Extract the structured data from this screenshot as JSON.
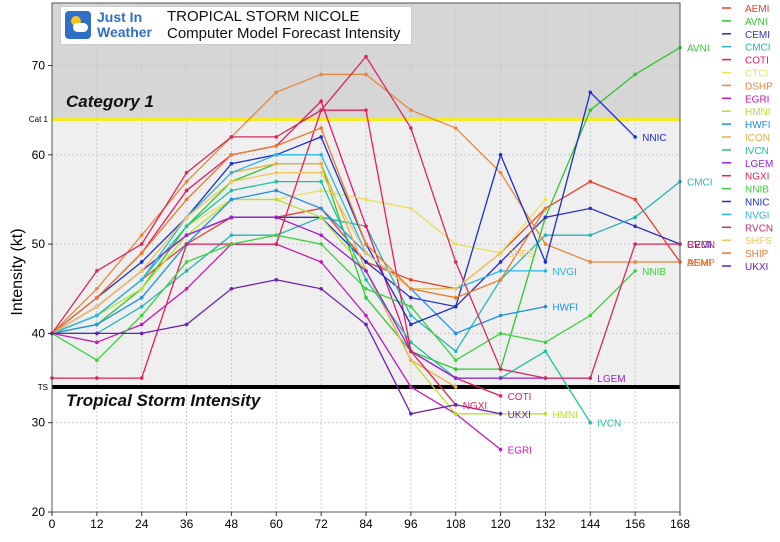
{
  "header": {
    "logo_line1": "Just In",
    "logo_line2": "Weather",
    "title_line1": "TROPICAL STORM NICOLE",
    "title_line2": "Computer Model Forecast Intensity"
  },
  "chart_data": {
    "type": "line",
    "title": "TROPICAL STORM NICOLE Computer Model Forecast Intensity",
    "xlabel": "",
    "ylabel": "Intensity (kt)",
    "xlim": [
      0,
      168
    ],
    "ylim": [
      20,
      77
    ],
    "xticks": [
      0,
      12,
      24,
      36,
      48,
      60,
      72,
      84,
      96,
      108,
      120,
      132,
      144,
      156,
      168
    ],
    "yticks": [
      20,
      30,
      40,
      50,
      60,
      70
    ],
    "grid": true,
    "legend_position": "right",
    "bands": [
      {
        "label": "Category 1",
        "from": 64,
        "to": 77,
        "color": "#d6d6d6"
      },
      {
        "label": "",
        "from": 34,
        "to": 64,
        "color": "#efefef"
      }
    ],
    "thresholds": [
      {
        "label": "Cat 1",
        "value": 64,
        "color": "#f2ea2a",
        "band_label": "Category 1"
      },
      {
        "label": "TS",
        "value": 34,
        "color": "#000000",
        "band_label": "Tropical Storm Intensity"
      }
    ],
    "series": [
      {
        "name": "AEMI",
        "color": "#e8412a",
        "end_label": "AEMI",
        "points": [
          [
            0,
            40
          ],
          [
            12,
            42
          ],
          [
            24,
            46
          ],
          [
            36,
            50
          ],
          [
            48,
            53
          ],
          [
            60,
            53
          ],
          [
            72,
            54
          ],
          [
            84,
            48
          ],
          [
            96,
            46
          ],
          [
            108,
            45
          ],
          [
            120,
            49
          ],
          [
            132,
            54
          ],
          [
            144,
            57
          ],
          [
            156,
            55
          ],
          [
            168,
            48
          ]
        ]
      },
      {
        "name": "AVNI",
        "color": "#2ec82e",
        "end_label": "AVNI",
        "points": [
          [
            0,
            40
          ],
          [
            12,
            41
          ],
          [
            24,
            45
          ],
          [
            36,
            52
          ],
          [
            48,
            57
          ],
          [
            60,
            59
          ],
          [
            72,
            59
          ],
          [
            84,
            44
          ],
          [
            96,
            38
          ],
          [
            108,
            36
          ],
          [
            120,
            36
          ],
          [
            132,
            53
          ],
          [
            144,
            65
          ],
          [
            156,
            69
          ],
          [
            168,
            72
          ]
        ]
      },
      {
        "name": "CEMI",
        "color": "#2f2fbe",
        "end_label": "CEMI",
        "points": [
          [
            0,
            40
          ],
          [
            12,
            43
          ],
          [
            24,
            47
          ],
          [
            36,
            51
          ],
          [
            48,
            53
          ],
          [
            60,
            53
          ],
          [
            72,
            53
          ],
          [
            84,
            48
          ],
          [
            96,
            44
          ],
          [
            108,
            43
          ],
          [
            120,
            48
          ],
          [
            132,
            53
          ],
          [
            144,
            54
          ],
          [
            156,
            52
          ],
          [
            168,
            50
          ]
        ]
      },
      {
        "name": "CMCI",
        "color": "#26b5b5",
        "end_label": "CMCI",
        "points": [
          [
            0,
            40
          ],
          [
            12,
            40
          ],
          [
            24,
            43
          ],
          [
            36,
            47
          ],
          [
            48,
            51
          ],
          [
            60,
            51
          ],
          [
            72,
            53
          ],
          [
            84,
            52
          ],
          [
            96,
            42
          ],
          [
            108,
            38
          ],
          [
            120,
            46
          ],
          [
            132,
            51
          ],
          [
            144,
            51
          ],
          [
            156,
            53
          ],
          [
            168,
            57
          ]
        ]
      },
      {
        "name": "COTI",
        "color": "#e5166a",
        "end_label": "COTI",
        "points": [
          [
            0,
            40
          ],
          [
            12,
            44
          ],
          [
            24,
            49
          ],
          [
            36,
            56
          ],
          [
            48,
            60
          ],
          [
            60,
            61
          ],
          [
            72,
            66
          ],
          [
            84,
            52
          ],
          [
            96,
            38
          ],
          [
            108,
            35
          ],
          [
            120,
            33
          ]
        ]
      },
      {
        "name": "CTCI",
        "color": "#e6e05a",
        "end_label": "",
        "points": [
          [
            0,
            40
          ],
          [
            12,
            42
          ],
          [
            24,
            46
          ],
          [
            36,
            52
          ],
          [
            48,
            55
          ],
          [
            60,
            55
          ],
          [
            72,
            56
          ],
          [
            84,
            55
          ],
          [
            96,
            54
          ],
          [
            108,
            50
          ],
          [
            120,
            49
          ],
          [
            132,
            55
          ]
        ]
      },
      {
        "name": "DSHP",
        "color": "#e8873a",
        "end_label": "DSHP",
        "points": [
          [
            0,
            40
          ],
          [
            12,
            45
          ],
          [
            24,
            51
          ],
          [
            36,
            57
          ],
          [
            48,
            62
          ],
          [
            60,
            67
          ],
          [
            72,
            69
          ],
          [
            84,
            69
          ],
          [
            96,
            65
          ],
          [
            108,
            63
          ],
          [
            120,
            58
          ],
          [
            132,
            50
          ],
          [
            144,
            48
          ],
          [
            156,
            48
          ],
          [
            168,
            48
          ]
        ]
      },
      {
        "name": "EGRI",
        "color": "#c21bb5",
        "end_label": "EGRI",
        "points": [
          [
            0,
            40
          ],
          [
            12,
            39
          ],
          [
            24,
            41
          ],
          [
            36,
            45
          ],
          [
            48,
            50
          ],
          [
            60,
            50
          ],
          [
            72,
            48
          ],
          [
            84,
            42
          ],
          [
            96,
            34
          ],
          [
            108,
            31
          ],
          [
            120,
            27
          ]
        ]
      },
      {
        "name": "HMNI",
        "color": "#b6e034",
        "end_label": "HMNI",
        "points": [
          [
            0,
            40
          ],
          [
            12,
            42
          ],
          [
            24,
            45
          ],
          [
            36,
            51
          ],
          [
            48,
            55
          ],
          [
            60,
            55
          ],
          [
            72,
            53
          ],
          [
            84,
            47
          ],
          [
            96,
            37
          ],
          [
            108,
            31
          ],
          [
            120,
            31
          ],
          [
            132,
            31
          ]
        ]
      },
      {
        "name": "HWFI",
        "color": "#1e90e6",
        "end_label": "HWFI",
        "points": [
          [
            0,
            40
          ],
          [
            12,
            41
          ],
          [
            24,
            44
          ],
          [
            36,
            50
          ],
          [
            48,
            55
          ],
          [
            60,
            56
          ],
          [
            72,
            54
          ],
          [
            84,
            49
          ],
          [
            96,
            45
          ],
          [
            108,
            40
          ],
          [
            120,
            42
          ],
          [
            132,
            43
          ]
        ]
      },
      {
        "name": "ICON",
        "color": "#ecad46",
        "end_label": "",
        "points": [
          [
            0,
            40
          ],
          [
            12,
            43
          ],
          [
            24,
            47
          ],
          [
            36,
            53
          ],
          [
            48,
            58
          ],
          [
            60,
            59
          ],
          [
            72,
            59
          ],
          [
            84,
            47
          ],
          [
            96,
            37
          ],
          [
            108,
            34
          ]
        ]
      },
      {
        "name": "IVCN",
        "color": "#1ec2a0",
        "end_label": "IVCN",
        "points": [
          [
            0,
            40
          ],
          [
            12,
            42
          ],
          [
            24,
            46
          ],
          [
            36,
            52
          ],
          [
            48,
            56
          ],
          [
            60,
            57
          ],
          [
            72,
            57
          ],
          [
            84,
            46
          ],
          [
            96,
            39
          ],
          [
            108,
            35
          ],
          [
            120,
            35
          ],
          [
            132,
            38
          ],
          [
            144,
            30
          ]
        ]
      },
      {
        "name": "LGEM",
        "color": "#9b1fd6",
        "end_label": "LGEM",
        "points": [
          [
            0,
            40
          ],
          [
            12,
            43
          ],
          [
            24,
            47
          ],
          [
            36,
            51
          ],
          [
            48,
            53
          ],
          [
            60,
            53
          ],
          [
            72,
            51
          ],
          [
            84,
            47
          ],
          [
            96,
            38
          ],
          [
            108,
            35
          ],
          [
            120,
            35
          ],
          [
            132,
            35
          ],
          [
            144,
            35
          ]
        ]
      },
      {
        "name": "NGXI",
        "color": "#e71f57",
        "end_label": "NGXI",
        "points": [
          [
            0,
            35
          ],
          [
            12,
            35
          ],
          [
            24,
            35
          ],
          [
            36,
            50
          ],
          [
            48,
            50
          ],
          [
            60,
            50
          ],
          [
            72,
            65
          ],
          [
            84,
            65
          ],
          [
            96,
            38
          ],
          [
            108,
            32
          ]
        ]
      },
      {
        "name": "NNIB",
        "color": "#3dd13d",
        "end_label": "NNIB",
        "points": [
          [
            0,
            40
          ],
          [
            12,
            37
          ],
          [
            24,
            42
          ],
          [
            36,
            48
          ],
          [
            48,
            50
          ],
          [
            60,
            51
          ],
          [
            72,
            50
          ],
          [
            84,
            45
          ],
          [
            96,
            43
          ],
          [
            108,
            37
          ],
          [
            120,
            40
          ],
          [
            132,
            39
          ],
          [
            144,
            42
          ],
          [
            156,
            47
          ]
        ]
      },
      {
        "name": "NNIC",
        "color": "#1b2fcf",
        "end_label": "NNIC",
        "points": [
          [
            0,
            40
          ],
          [
            12,
            44
          ],
          [
            24,
            48
          ],
          [
            36,
            53
          ],
          [
            48,
            59
          ],
          [
            60,
            60
          ],
          [
            72,
            62
          ],
          [
            84,
            50
          ],
          [
            96,
            41
          ],
          [
            108,
            43
          ],
          [
            120,
            60
          ],
          [
            132,
            48
          ],
          [
            144,
            67
          ],
          [
            156,
            62
          ]
        ]
      },
      {
        "name": "NVGI",
        "color": "#25b8e6",
        "end_label": "NVGI",
        "points": [
          [
            0,
            40
          ],
          [
            12,
            42
          ],
          [
            24,
            46
          ],
          [
            36,
            53
          ],
          [
            48,
            58
          ],
          [
            60,
            60
          ],
          [
            72,
            60
          ],
          [
            84,
            49
          ],
          [
            96,
            45
          ],
          [
            108,
            45
          ],
          [
            120,
            47
          ],
          [
            132,
            47
          ]
        ]
      },
      {
        "name": "RVCN",
        "color": "#d22b60",
        "end_label": "RVCN",
        "points": [
          [
            0,
            40
          ],
          [
            12,
            47
          ],
          [
            24,
            50
          ],
          [
            36,
            58
          ],
          [
            48,
            62
          ],
          [
            60,
            62
          ],
          [
            72,
            65
          ],
          [
            84,
            71
          ],
          [
            96,
            63
          ],
          [
            108,
            48
          ],
          [
            120,
            36
          ],
          [
            132,
            35
          ],
          [
            144,
            35
          ],
          [
            156,
            50
          ],
          [
            168,
            50
          ]
        ]
      },
      {
        "name": "SHFS",
        "color": "#f1c65e",
        "end_label": "SHFS",
        "points": [
          [
            0,
            40
          ],
          [
            12,
            43
          ],
          [
            24,
            47
          ],
          [
            36,
            53
          ],
          [
            48,
            57
          ],
          [
            60,
            58
          ],
          [
            72,
            58
          ],
          [
            84,
            49
          ],
          [
            96,
            45
          ],
          [
            108,
            45
          ],
          [
            120,
            49
          ]
        ]
      },
      {
        "name": "SHIP",
        "color": "#ec7a28",
        "end_label": "",
        "points": [
          [
            0,
            40
          ],
          [
            12,
            44
          ],
          [
            24,
            49
          ],
          [
            36,
            55
          ],
          [
            48,
            60
          ],
          [
            60,
            61
          ],
          [
            72,
            63
          ],
          [
            84,
            50
          ],
          [
            96,
            45
          ],
          [
            108,
            44
          ],
          [
            120,
            46
          ],
          [
            132,
            54
          ]
        ]
      },
      {
        "name": "UKXI",
        "color": "#6a1fb0",
        "end_label": "UKXI",
        "points": [
          [
            0,
            40
          ],
          [
            12,
            40
          ],
          [
            24,
            40
          ],
          [
            36,
            41
          ],
          [
            48,
            45
          ],
          [
            60,
            46
          ],
          [
            72,
            45
          ],
          [
            84,
            41
          ],
          [
            96,
            31
          ],
          [
            108,
            32
          ],
          [
            120,
            31
          ]
        ]
      }
    ]
  }
}
